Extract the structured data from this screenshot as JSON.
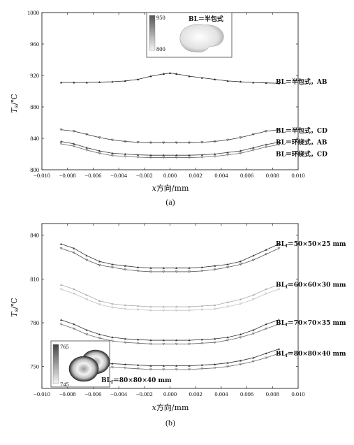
{
  "chart_data": [
    {
      "type": "line",
      "panel": "(a)",
      "xlabel": "x方向/mm",
      "ylabel": "Ts/℃",
      "ylabel_parts": {
        "main": "T",
        "sub": "s",
        "unit": "/℃"
      },
      "xlabel_parts": {
        "var": "x",
        "rest": "方向/mm"
      },
      "xlim": [
        -0.01,
        0.01
      ],
      "ylim": [
        800,
        1000
      ],
      "xticks": [
        "−0.010",
        "−0.008",
        "−0.006",
        "−0.004",
        "−0.002",
        "0.000",
        "0.002",
        "0.004",
        "0.006",
        "0.008",
        "0.010"
      ],
      "yticks": [
        "800",
        "840",
        "880",
        "920",
        "960",
        "1000"
      ],
      "series": [
        {
          "name": "BL＝半包式，AB",
          "color": "#222222",
          "x": [
            -0.0085,
            -0.0075,
            -0.0065,
            -0.0055,
            -0.0045,
            -0.0035,
            -0.0025,
            -0.0015,
            -0.0005,
            0.0,
            0.0005,
            0.0015,
            0.0025,
            0.0035,
            0.0045,
            0.0055,
            0.0065,
            0.0075,
            0.0085
          ],
          "y": [
            911,
            911,
            911,
            911.5,
            912,
            913,
            915,
            919,
            922,
            923,
            922,
            919,
            917,
            915,
            913,
            912,
            911,
            910.5,
            910
          ]
        },
        {
          "name": "BL＝半包式，CD",
          "color": "#333333",
          "x": [
            -0.0085,
            -0.0075,
            -0.0065,
            -0.0055,
            -0.0045,
            -0.0035,
            -0.0025,
            -0.0015,
            -0.0005,
            0.0005,
            0.0015,
            0.0025,
            0.0035,
            0.0045,
            0.0055,
            0.0065,
            0.0075,
            0.0085
          ],
          "y": [
            851,
            849,
            845,
            841,
            838,
            836,
            835,
            834.5,
            834.5,
            834.5,
            834.5,
            835,
            836,
            838,
            841,
            845,
            849,
            851
          ]
        },
        {
          "name": "BL＝环绕式，AB",
          "color": "#333333",
          "x": [
            -0.0085,
            -0.0075,
            -0.0065,
            -0.0055,
            -0.0045,
            -0.0035,
            -0.0025,
            -0.0015,
            -0.0005,
            0.0005,
            0.0015,
            0.0025,
            0.0035,
            0.0045,
            0.0055,
            0.0065,
            0.0075,
            0.0085
          ],
          "y": [
            836,
            833,
            828,
            824,
            821,
            820,
            819,
            818.5,
            818.5,
            818.5,
            818.5,
            819,
            820,
            822,
            824,
            828,
            832,
            835
          ]
        },
        {
          "name": "BL＝环绕式，CD",
          "color": "#666666",
          "x": [
            -0.0085,
            -0.0075,
            -0.0065,
            -0.0055,
            -0.0045,
            -0.0035,
            -0.0025,
            -0.0015,
            -0.0005,
            0.0005,
            0.0015,
            0.0025,
            0.0035,
            0.0045,
            0.0055,
            0.0065,
            0.0075,
            0.0085
          ],
          "y": [
            833,
            830,
            825,
            821,
            818,
            817,
            816,
            815.5,
            815.5,
            815.5,
            815.5,
            816,
            817,
            819,
            821,
            825,
            829,
            832
          ]
        }
      ],
      "inset": {
        "scale_max": "950",
        "scale_min": "800",
        "label": "BL＝半包式"
      }
    },
    {
      "type": "line",
      "panel": "(b)",
      "xlabel": "x方向/mm",
      "ylabel": "Ts/℃",
      "ylabel_parts": {
        "main": "T",
        "sub": "s",
        "unit": "/℃"
      },
      "xlabel_parts": {
        "var": "x",
        "rest": "方向/mm"
      },
      "xlim": [
        -0.01,
        0.01
      ],
      "ylim": [
        735,
        848
      ],
      "xticks": [
        "−0.010",
        "−0.008",
        "−0.006",
        "−0.004",
        "−0.002",
        "0.000",
        "0.002",
        "0.004",
        "0.006",
        "0.008",
        "0.010"
      ],
      "yticks": [
        "750",
        "780",
        "810",
        "840"
      ],
      "series": [
        {
          "name": "BLf＝50×50×25 mm",
          "color": "#333333",
          "x": [
            -0.0085,
            -0.0075,
            -0.0065,
            -0.0055,
            -0.0045,
            -0.0035,
            -0.0025,
            -0.0015,
            -0.0005,
            0.0005,
            0.0015,
            0.0025,
            0.0035,
            0.0045,
            0.0055,
            0.0065,
            0.0075,
            0.0085
          ],
          "y": [
            834,
            831,
            826,
            822,
            820,
            819,
            818,
            817.5,
            817.5,
            817.5,
            817.5,
            818,
            819,
            820,
            822,
            826,
            830,
            834
          ]
        },
        {
          "name": "BLf＝50×50×25 mm (2)",
          "color": "#555555",
          "x": [
            -0.0085,
            -0.0075,
            -0.0065,
            -0.0055,
            -0.0045,
            -0.0035,
            -0.0025,
            -0.0015,
            -0.0005,
            0.0005,
            0.0015,
            0.0025,
            0.0035,
            0.0045,
            0.0055,
            0.0065,
            0.0075,
            0.0085
          ],
          "y": [
            831,
            828,
            823,
            819.5,
            818,
            816.5,
            815.5,
            815,
            815,
            815,
            815,
            815.5,
            816.5,
            818,
            820,
            823,
            827,
            831
          ]
        },
        {
          "name": "BLf＝60×60×30 mm",
          "color": "#aaaaaa",
          "x": [
            -0.0085,
            -0.0075,
            -0.0065,
            -0.0055,
            -0.0045,
            -0.0035,
            -0.0025,
            -0.0015,
            -0.0005,
            0.0005,
            0.0015,
            0.0025,
            0.0035,
            0.0045,
            0.0055,
            0.0065,
            0.0075,
            0.0085
          ],
          "y": [
            806,
            803,
            799,
            795,
            793,
            792,
            791.5,
            791,
            791,
            791,
            791,
            791.5,
            792,
            794,
            796,
            799,
            803,
            806
          ]
        },
        {
          "name": "BLf＝60×60×30 mm (2)",
          "color": "#c0c0c0",
          "x": [
            -0.0085,
            -0.0075,
            -0.0065,
            -0.0055,
            -0.0045,
            -0.0035,
            -0.0025,
            -0.0015,
            -0.0005,
            0.0005,
            0.0015,
            0.0025,
            0.0035,
            0.0045,
            0.0055,
            0.0065,
            0.0075,
            0.0085
          ],
          "y": [
            803,
            800,
            796,
            792.5,
            790.5,
            789.5,
            789,
            788.5,
            788.5,
            788.5,
            788.5,
            789,
            789.5,
            791,
            793,
            796,
            800,
            803
          ]
        },
        {
          "name": "BLf＝70×70×35 mm",
          "color": "#333333",
          "x": [
            -0.0085,
            -0.0075,
            -0.0065,
            -0.0055,
            -0.0045,
            -0.0035,
            -0.0025,
            -0.0015,
            -0.0005,
            0.0005,
            0.0015,
            0.0025,
            0.0035,
            0.0045,
            0.0055,
            0.0065,
            0.0075,
            0.0085
          ],
          "y": [
            782,
            779,
            775,
            772,
            770,
            769,
            768.5,
            768,
            768,
            768,
            768,
            768.5,
            769,
            770,
            772,
            775,
            779,
            782
          ]
        },
        {
          "name": "BLf＝70×70×35 mm (2)",
          "color": "#666666",
          "x": [
            -0.0085,
            -0.0075,
            -0.0065,
            -0.0055,
            -0.0045,
            -0.0035,
            -0.0025,
            -0.0015,
            -0.0005,
            0.0005,
            0.0015,
            0.0025,
            0.0035,
            0.0045,
            0.0055,
            0.0065,
            0.0075,
            0.0085
          ],
          "y": [
            779,
            776,
            772,
            769.5,
            767.5,
            766.5,
            766,
            765.5,
            765.5,
            765.5,
            765.5,
            766,
            766.5,
            768,
            770,
            772.5,
            776,
            779
          ]
        },
        {
          "name": "BLf＝80×80×40 mm",
          "color": "#333333",
          "x": [
            -0.0085,
            -0.0075,
            -0.0065,
            -0.0055,
            -0.0045,
            -0.0035,
            -0.0025,
            -0.0015,
            -0.0005,
            0.0005,
            0.0015,
            0.0025,
            0.0035,
            0.0045,
            0.0055,
            0.0065,
            0.0075,
            0.0085
          ],
          "y": [
            762,
            759,
            756,
            753,
            752,
            751.5,
            751,
            750.5,
            750.5,
            750.5,
            750.5,
            751,
            751.5,
            752.5,
            754,
            756,
            759,
            762
          ]
        },
        {
          "name": "BLf＝80×80×40 mm (2)",
          "color": "#666666",
          "x": [
            -0.0085,
            -0.0075,
            -0.0065,
            -0.0055,
            -0.0045,
            -0.0035,
            -0.0025,
            -0.0015,
            -0.0005,
            0.0005,
            0.0015,
            0.0025,
            0.0035,
            0.0045,
            0.0055,
            0.0065,
            0.0075,
            0.0085
          ],
          "y": [
            759,
            756,
            753,
            750.5,
            749.5,
            749,
            748.5,
            748,
            748,
            748,
            748,
            748.5,
            749,
            750,
            751.5,
            753.5,
            756,
            759
          ]
        }
      ],
      "labels": [
        {
          "text": "BL",
          "sub": "f",
          "rest": "＝50×50×25 mm",
          "y": 834
        },
        {
          "text": "BL",
          "sub": "f",
          "rest": "＝60×60×30 mm",
          "y": 806
        },
        {
          "text": "BL",
          "sub": "f",
          "rest": "＝70×70×35 mm",
          "y": 780
        },
        {
          "text": "BL",
          "sub": "f",
          "rest": "＝80×80×40 mm",
          "y": 759
        }
      ],
      "inset": {
        "scale_max": "765",
        "scale_min": "745",
        "label_main": "BL",
        "label_sub": "f",
        "label_rest": "＝80×80×40 mm"
      }
    }
  ]
}
